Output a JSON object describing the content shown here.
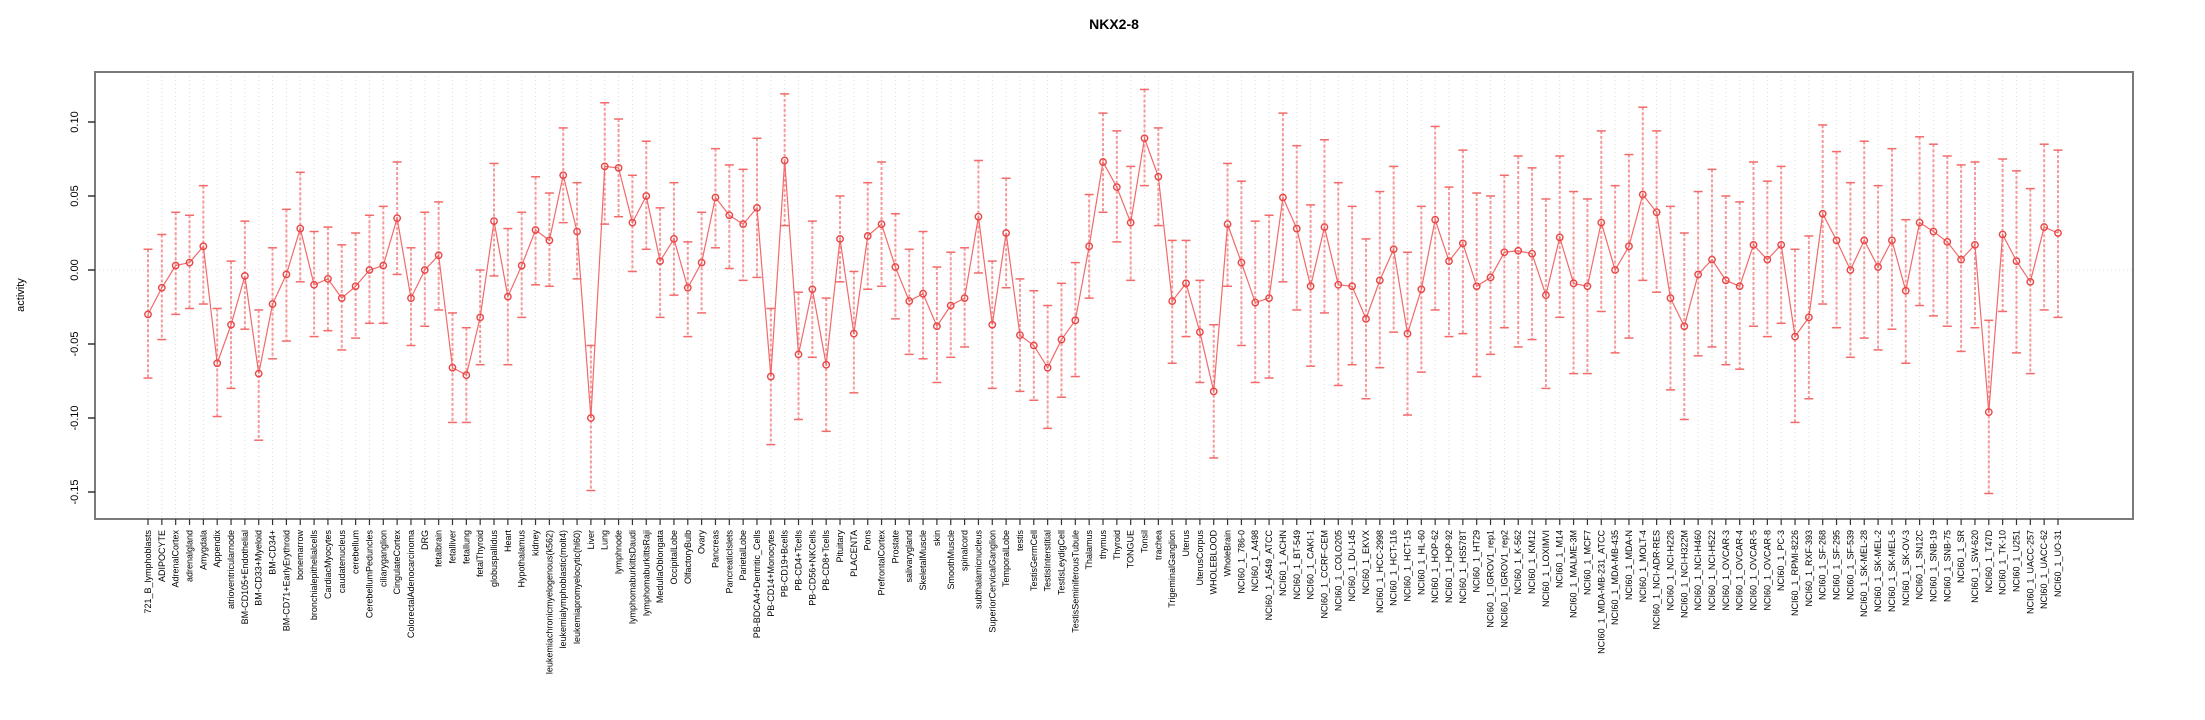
{
  "chart_data": {
    "type": "line",
    "title": "NKX2-8",
    "xlabel": "",
    "ylabel": "activity",
    "ylim": [
      -0.168,
      0.134
    ],
    "yticks": [
      0.1,
      0.05,
      0.0,
      -0.05,
      -0.1,
      -0.15
    ],
    "grid": "vertical dotted gridline at every category; dotted horizontal line at 0",
    "legend_position": "none",
    "marker": "open-circle",
    "point_color": "#e84545",
    "line_color": "#f26a6a",
    "errorbar_color": "#f59a9a",
    "frame_color": "#7a7a7a",
    "gridline_color": "#dcdcdc",
    "categories": [
      "721_B_lymphoblasts",
      "ADIPOCYTE",
      "AdrenalCortex",
      "adrenalgland",
      "Amygdala",
      "Appendix",
      "atrioventricularnode",
      "BM-CD105+Endothelial",
      "BM-CD33+Myeloid",
      "BM-CD34+",
      "BM-CD71+EarlyErythroid",
      "bonemarrow",
      "bronchialepithelialcells",
      "CardiacMyocytes",
      "caudatenucleus",
      "cerebellum",
      "CerebellumPeduncles",
      "ciliaryganglion",
      "CingulateCortex",
      "ColorectalAdenocarcinoma",
      "DRG",
      "fetalbrain",
      "fetalliver",
      "fetallung",
      "fetalThyroid",
      "globuspallidus",
      "Heart",
      "Hypothalamus",
      "kidney",
      "leukemiachronicmyelogenous(k562)",
      "leukemialymphoblastic(molt4)",
      "leukemiapromyelocytic(hl60)",
      "Liver",
      "Lung",
      "lymphnode",
      "lymphomaburkittsDaudi",
      "lymphomaburkittsRaji",
      "MedullaOblongata",
      "OccipitalLobe",
      "OlfactoryBulb",
      "Ovary",
      "Pancreas",
      "PancreaticIslets",
      "ParietalLobe",
      "PB-BDCA4+Dentritic_Cells",
      "PB-CD14+Monocytes",
      "PB-CD19+Bcells",
      "PB-CD4+Tcells",
      "PB-CD56+NKCells",
      "PB-CD8+Tcells",
      "Pituitary",
      "PLACENTA",
      "Pons",
      "PrefrontalCortex",
      "Prostate",
      "salivarygland",
      "SkeletalMuscle",
      "skin",
      "SmoothMuscle",
      "spinalcord",
      "subthalamicnucleus",
      "SuperiorCervicalGanglion",
      "TemporalLobe",
      "testis",
      "TestisGermCell",
      "TestisInterstitial",
      "TestisLeydigCell",
      "TestisSeminiferousTubule",
      "Thalamus",
      "thymus",
      "Thyroid",
      "TONGUE",
      "Tonsil",
      "trachea",
      "TrigeminalGanglion",
      "Uterus",
      "UterusCorpus",
      "WHOLEBLOOD",
      "WholeBrain",
      "NCI60_1_786-0",
      "NCI60_1_A498",
      "NCI60_1_A549_ATCC",
      "NCI60_1_ACHN",
      "NCI60_1_BT-549",
      "NCI60_1_CAKI-1",
      "NCI60_1_CCRF-CEM",
      "NCI60_1_COLO205",
      "NCI60_1_DU-145",
      "NCI60_1_EKVX",
      "NCI60_1_HCC-2998",
      "NCI60_1_HCT-116",
      "NCI60_1_HCT-15",
      "NCI60_1_HL-60",
      "NCI60_1_HOP-62",
      "NCI60_1_HOP-92",
      "NCI60_1_HS578T",
      "NCI60_1_HT29",
      "NCI60_1_IGROV1_rep1",
      "NCI60_1_IGROV1_rep2",
      "NCI60_1_K-562",
      "NCI60_1_KM12",
      "NCI60_1_LOXIMVI",
      "NCI60_1_M14",
      "NCI60_1_MALME-3M",
      "NCI60_1_MCF7",
      "NCI60_1_MDA-MB-231_ATCC",
      "NCI60_1_MDA-MB-435",
      "NCI60_1_MDA-N",
      "NCI60_1_MOLT-4",
      "NCI60_1_NCI-ADR-RES",
      "NCI60_1_NCI-H226",
      "NCI60_1_NCI-H322M",
      "NCI60_1_NCI-H460",
      "NCI60_1_NCI-H522",
      "NCI60_1_OVCAR-3",
      "NCI60_1_OVCAR-4",
      "NCI60_1_OVCAR-5",
      "NCI60_1_OVCAR-8",
      "NCI60_1_PC-3",
      "NCI60_1_RPMI-8226",
      "NCI60_1_RXF-393",
      "NCI60_1_SF-268",
      "NCI60_1_SF-295",
      "NCI60_1_SF-539",
      "NCI60_1_SK-MEL-28",
      "NCI60_1_SK-MEL-2",
      "NCI60_1_SK-MEL-5",
      "NCI60_1_SK-OV-3",
      "NCI60_1_SN12C",
      "NCI60_1_SNB-19",
      "NCI60_1_SNB-75",
      "NCI60_1_SR",
      "NCI60_1_SW-620",
      "NCI60_1_T47D",
      "NCI60_1_TK-10",
      "NCI60_1_U251",
      "NCI60_1_UACC-257",
      "NCI60_1_UACC-62",
      "NCI60_1_UO-31"
    ],
    "series": [
      {
        "name": "activity",
        "values": [
          -0.03,
          -0.012,
          0.003,
          0.005,
          0.016,
          -0.063,
          -0.037,
          -0.004,
          -0.07,
          -0.023,
          -0.003,
          0.028,
          -0.01,
          -0.006,
          -0.019,
          -0.011,
          0.0,
          0.003,
          0.035,
          -0.019,
          0.0,
          0.01,
          -0.066,
          -0.071,
          -0.032,
          0.033,
          -0.018,
          0.003,
          0.027,
          0.02,
          0.064,
          0.026,
          -0.1,
          0.07,
          0.069,
          0.032,
          0.05,
          0.006,
          0.021,
          -0.012,
          0.005,
          0.049,
          0.037,
          0.031,
          0.042,
          -0.072,
          0.074,
          -0.057,
          -0.013,
          -0.064,
          0.021,
          -0.043,
          0.023,
          0.031,
          0.002,
          -0.021,
          -0.016,
          -0.038,
          -0.024,
          -0.019,
          0.036,
          -0.037,
          0.025,
          -0.044,
          -0.051,
          -0.066,
          -0.047,
          -0.034,
          0.016,
          0.073,
          0.056,
          0.032,
          0.089,
          0.063,
          -0.021,
          -0.009,
          -0.042,
          -0.082,
          0.031,
          0.005,
          -0.022,
          -0.019,
          0.049,
          0.028,
          -0.011,
          0.029,
          -0.01,
          -0.011,
          -0.033,
          -0.007,
          0.014,
          -0.043,
          -0.013,
          0.034,
          0.006,
          0.018,
          -0.011,
          -0.005,
          0.012,
          0.013,
          0.011,
          -0.017,
          0.022,
          -0.009,
          -0.011,
          0.032,
          0.0,
          0.016,
          0.051,
          0.039,
          -0.019,
          -0.038,
          -0.003,
          0.007,
          -0.007,
          -0.011,
          0.017,
          0.007,
          0.017,
          -0.045,
          -0.032,
          0.038,
          0.02,
          0.0,
          0.02,
          0.002,
          0.02,
          -0.014,
          0.032,
          0.026,
          0.019,
          0.007,
          0.017,
          -0.096,
          0.024,
          0.006,
          -0.008,
          0.029,
          0.025
        ],
        "upper": [
          0.014,
          0.024,
          0.039,
          0.037,
          0.057,
          -0.026,
          0.006,
          0.033,
          -0.027,
          0.015,
          0.041,
          0.066,
          0.026,
          0.029,
          0.017,
          0.025,
          0.037,
          0.043,
          0.073,
          0.015,
          0.039,
          0.046,
          -0.029,
          -0.039,
          0.0,
          0.072,
          0.028,
          0.039,
          0.063,
          0.052,
          0.096,
          0.059,
          -0.051,
          0.113,
          0.102,
          0.064,
          0.087,
          0.042,
          0.059,
          0.019,
          0.039,
          0.082,
          0.071,
          0.068,
          0.089,
          -0.026,
          0.119,
          -0.015,
          0.033,
          -0.019,
          0.05,
          -0.001,
          0.059,
          0.073,
          0.038,
          0.014,
          0.026,
          0.002,
          0.012,
          0.015,
          0.074,
          0.006,
          0.062,
          -0.006,
          -0.014,
          -0.024,
          -0.009,
          0.005,
          0.051,
          0.106,
          0.094,
          0.07,
          0.122,
          0.096,
          0.02,
          0.02,
          -0.007,
          -0.037,
          0.072,
          0.06,
          0.033,
          0.037,
          0.106,
          0.084,
          0.044,
          0.088,
          0.059,
          0.043,
          0.021,
          0.053,
          0.07,
          0.012,
          0.043,
          0.097,
          0.056,
          0.081,
          0.052,
          0.05,
          0.064,
          0.077,
          0.069,
          0.048,
          0.077,
          0.053,
          0.048,
          0.094,
          0.057,
          0.078,
          0.11,
          0.094,
          0.043,
          0.025,
          0.053,
          0.068,
          0.05,
          0.046,
          0.073,
          0.06,
          0.07,
          0.014,
          0.023,
          0.098,
          0.08,
          0.059,
          0.087,
          0.057,
          0.082,
          0.034,
          0.09,
          0.085,
          0.077,
          0.071,
          0.073,
          -0.034,
          0.075,
          0.067,
          0.055,
          0.085,
          0.081
        ],
        "lower": [
          -0.073,
          -0.047,
          -0.03,
          -0.026,
          -0.023,
          -0.099,
          -0.08,
          -0.04,
          -0.115,
          -0.06,
          -0.048,
          -0.008,
          -0.045,
          -0.041,
          -0.054,
          -0.046,
          -0.036,
          -0.036,
          -0.003,
          -0.051,
          -0.038,
          -0.027,
          -0.103,
          -0.103,
          -0.064,
          -0.004,
          -0.064,
          -0.032,
          -0.01,
          -0.011,
          0.032,
          -0.006,
          -0.149,
          0.031,
          0.036,
          -0.001,
          0.014,
          -0.032,
          -0.017,
          -0.045,
          -0.029,
          0.015,
          0.001,
          -0.007,
          -0.005,
          -0.118,
          0.03,
          -0.101,
          -0.059,
          -0.109,
          -0.008,
          -0.083,
          -0.013,
          -0.011,
          -0.033,
          -0.057,
          -0.06,
          -0.076,
          -0.059,
          -0.052,
          -0.002,
          -0.08,
          -0.012,
          -0.082,
          -0.088,
          -0.107,
          -0.086,
          -0.072,
          -0.019,
          0.039,
          0.019,
          -0.007,
          0.057,
          0.03,
          -0.063,
          -0.045,
          -0.076,
          -0.127,
          -0.011,
          -0.051,
          -0.076,
          -0.073,
          -0.008,
          -0.027,
          -0.065,
          -0.029,
          -0.078,
          -0.064,
          -0.087,
          -0.066,
          -0.042,
          -0.098,
          -0.069,
          -0.027,
          -0.045,
          -0.043,
          -0.072,
          -0.057,
          -0.039,
          -0.052,
          -0.047,
          -0.08,
          -0.032,
          -0.07,
          -0.07,
          -0.028,
          -0.056,
          -0.046,
          -0.007,
          -0.015,
          -0.081,
          -0.101,
          -0.058,
          -0.052,
          -0.064,
          -0.067,
          -0.038,
          -0.045,
          -0.036,
          -0.103,
          -0.087,
          -0.023,
          -0.039,
          -0.059,
          -0.046,
          -0.054,
          -0.04,
          -0.063,
          -0.024,
          -0.031,
          -0.038,
          -0.055,
          -0.039,
          -0.151,
          -0.028,
          -0.056,
          -0.07,
          -0.027,
          -0.032
        ]
      }
    ]
  }
}
